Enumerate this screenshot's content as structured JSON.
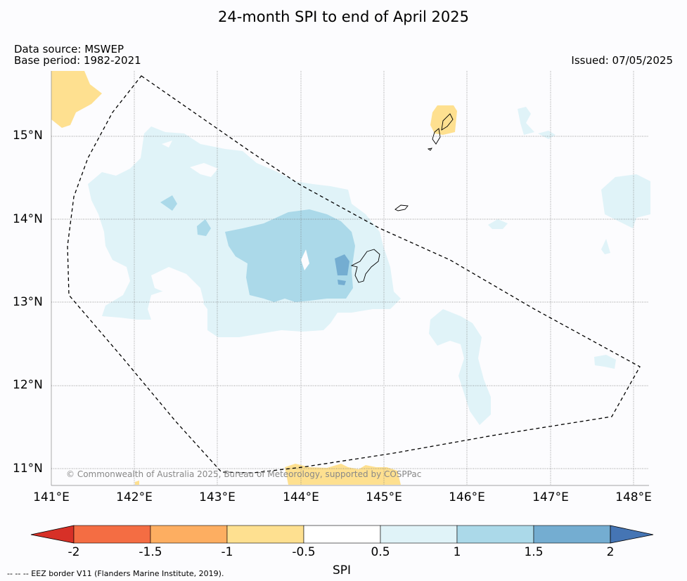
{
  "title": "24-month SPI to end of April 2025",
  "meta": {
    "source": "Data source: MSWEP",
    "base_period": "Base period: 1982-2021",
    "issued": "Issued: 07/05/2025"
  },
  "axes": {
    "lat_labels": [
      "15°N",
      "14°N",
      "13°N",
      "12°N",
      "11°N"
    ],
    "lon_labels": [
      "141°E",
      "142°E",
      "143°E",
      "144°E",
      "145°E",
      "146°E",
      "147°E",
      "148°E"
    ]
  },
  "colorbar": {
    "title": "SPI",
    "ticks": [
      "-2",
      "-1.5",
      "-1",
      "-0.5",
      "0.5",
      "1",
      "1.5",
      "2"
    ],
    "colors": {
      "lt_-2": "#d73027",
      "-2_-1.5": "#f46d43",
      "-1.5_-1": "#fdae61",
      "-1_-0.5": "#fee090",
      "-0.5_0.5": "#ffffff",
      "0.5_1": "#e0f3f8",
      "1_1.5": "#abd9e9",
      "1.5_2": "#74add1",
      "gt_2": "#4575b4"
    }
  },
  "copyright": "© Commonwealth of Australia 2025, Bureau of Meteorology, supported by COSPPac",
  "footnote": "--  --  -- EEZ border V11 (Flanders Marine Institute, 2019)."
}
